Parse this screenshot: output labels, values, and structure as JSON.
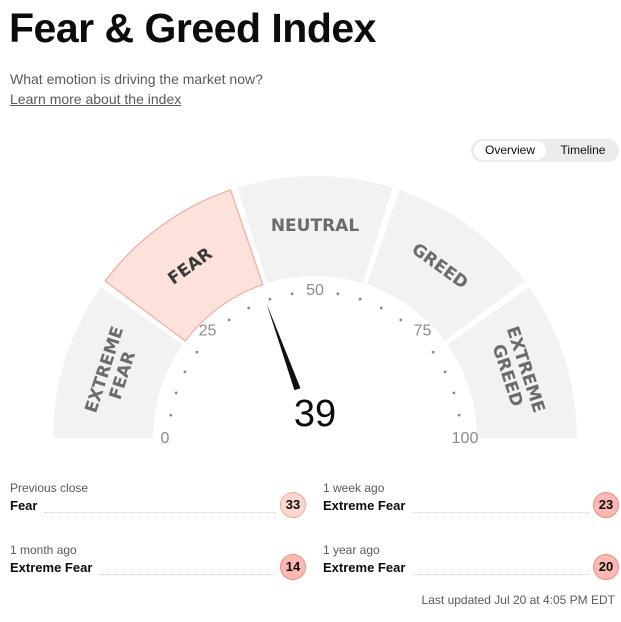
{
  "header": {
    "title": "Fear & Greed Index",
    "subtitle": "What emotion is driving the market now?",
    "learn_more": "Learn more about the index"
  },
  "view_toggle": {
    "options": [
      "Overview",
      "Timeline"
    ],
    "selected": "Overview"
  },
  "gauge": {
    "value": 39,
    "value_text": "39",
    "current_zone": "FEAR",
    "zones": [
      {
        "line1": "EXTREME",
        "line2": "FEAR"
      },
      {
        "line1": "FEAR",
        "line2": ""
      },
      {
        "line1": "NEUTRAL",
        "line2": ""
      },
      {
        "line1": "GREED",
        "line2": ""
      },
      {
        "line1": "EXTREME",
        "line2": "GREED"
      }
    ],
    "scale_labels": [
      "0",
      "25",
      "50",
      "75",
      "100"
    ],
    "colors": {
      "zone_bg": "#f2f2f2",
      "zone_active": "#fde2dc",
      "zone_active_border": "#f4aa9b",
      "needle": "#111111",
      "label": "#6b6b6b"
    }
  },
  "history": [
    {
      "label": "Previous close",
      "rating": "Fear",
      "value": "33",
      "level": "fear"
    },
    {
      "label": "1 week ago",
      "rating": "Extreme Fear",
      "value": "23",
      "level": "xfear"
    },
    {
      "label": "1 month ago",
      "rating": "Extreme Fear",
      "value": "14",
      "level": "xfear"
    },
    {
      "label": "1 year ago",
      "rating": "Extreme Fear",
      "value": "20",
      "level": "xfear"
    }
  ],
  "last_updated": "Last updated Jul 20 at 4:05 PM EDT"
}
